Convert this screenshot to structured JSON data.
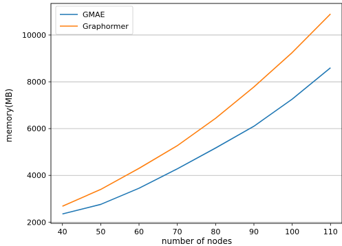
{
  "chart_data": {
    "type": "line",
    "xlabel": "number of nodes",
    "ylabel": "memory(MB)",
    "x": [
      40,
      50,
      60,
      70,
      80,
      90,
      100,
      110
    ],
    "xticks": [
      40,
      50,
      60,
      70,
      80,
      90,
      100,
      110
    ],
    "yticks": [
      2000,
      4000,
      6000,
      8000,
      10000
    ],
    "xlim": [
      37,
      113
    ],
    "ylim": [
      1950,
      11350
    ],
    "grid": "horizontal",
    "legend_position": "upper-left",
    "series": [
      {
        "name": "GMAE",
        "color": "#1f77b4",
        "values": [
          2350,
          2760,
          3450,
          4280,
          5170,
          6100,
          7260,
          8600
        ]
      },
      {
        "name": "Graphormer",
        "color": "#ff7f0e",
        "values": [
          2680,
          3400,
          4300,
          5270,
          6440,
          7780,
          9250,
          10900
        ]
      }
    ]
  }
}
